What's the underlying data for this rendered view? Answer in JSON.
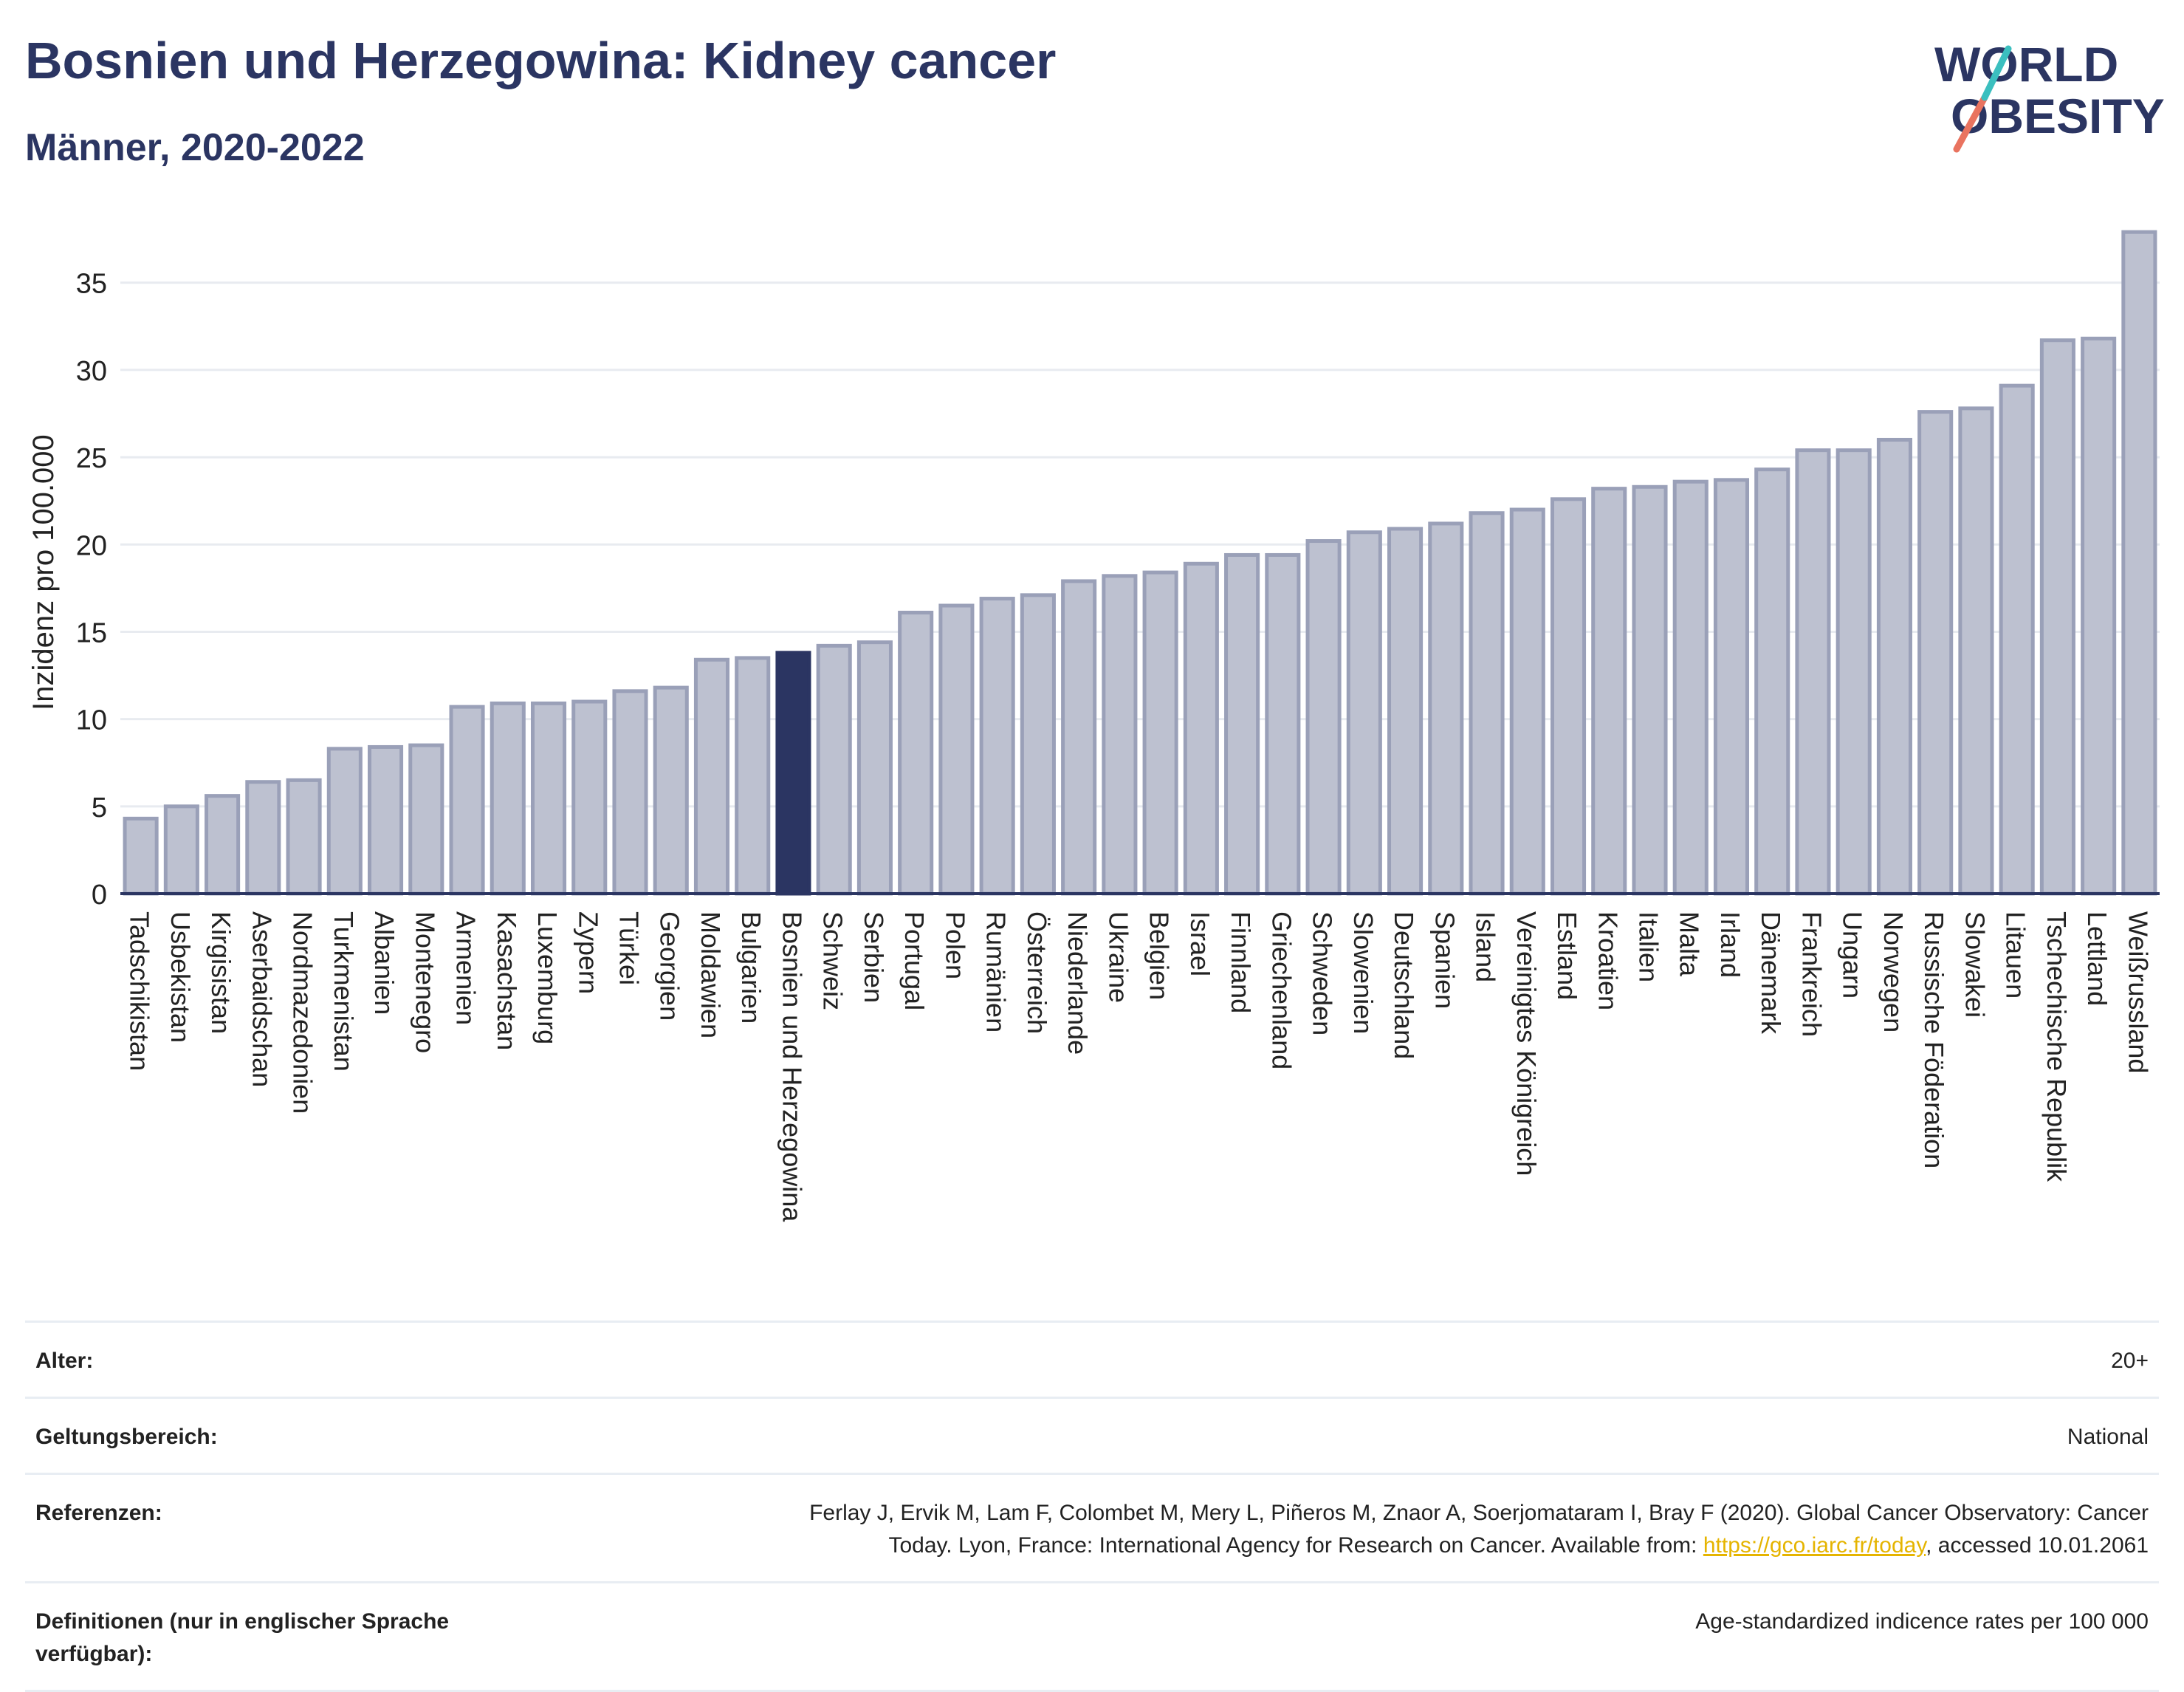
{
  "header": {
    "title": "Bosnien und Herzegowina: Kidney cancer",
    "subtitle": "Männer, 2020-2022"
  },
  "logo": {
    "line1": "WORLD",
    "line2": "OBESITY"
  },
  "colors": {
    "bar": "#bdc1d0",
    "bar_stroke": "#9aa0b8",
    "highlight": "#2b3562",
    "axis_text": "#222222",
    "grid": "#e8ebf0",
    "logo_slash_teal": "#3bbfbf",
    "logo_slash_coral": "#e9735f",
    "link": "#e5b400"
  },
  "chart_data": {
    "type": "bar",
    "ylabel": "Inzidenz pro 100.000",
    "ylim": [
      0,
      38.5
    ],
    "yticks": [
      0,
      5,
      10,
      15,
      20,
      25,
      30,
      35
    ],
    "grid": true,
    "highlight": "Bosnien und Herzegowina",
    "categories": [
      "Tadschikistan",
      "Usbekistan",
      "Kirgisistan",
      "Aserbaidschan",
      "Nordmazedonien",
      "Turkmenistan",
      "Albanien",
      "Montenegro",
      "Armenien",
      "Kasachstan",
      "Luxemburg",
      "Zypern",
      "Türkei",
      "Georgien",
      "Moldawien",
      "Bulgarien",
      "Bosnien und Herzegowina",
      "Schweiz",
      "Serbien",
      "Portugal",
      "Polen",
      "Rumänien",
      "Österreich",
      "Niederlande",
      "Ukraine",
      "Belgien",
      "Israel",
      "Finnland",
      "Griechenland",
      "Schweden",
      "Slowenien",
      "Deutschland",
      "Spanien",
      "Island",
      "Vereinigtes Königreich",
      "Estland",
      "Kroatien",
      "Italien",
      "Malta",
      "Irland",
      "Dänemark",
      "Frankreich",
      "Ungarn",
      "Norwegen",
      "Russische Föderation",
      "Slowakei",
      "Litauen",
      "Tschechische Republik",
      "Lettland",
      "Weißrussland"
    ],
    "values": [
      4.3,
      5.0,
      5.6,
      6.4,
      6.5,
      8.3,
      8.4,
      8.5,
      10.7,
      10.9,
      10.9,
      11.0,
      11.6,
      11.8,
      13.4,
      13.5,
      13.8,
      14.2,
      14.4,
      16.1,
      16.5,
      16.9,
      17.1,
      17.9,
      18.2,
      18.4,
      18.9,
      19.4,
      19.4,
      20.2,
      20.7,
      20.9,
      21.2,
      21.8,
      22.0,
      22.6,
      23.2,
      23.3,
      23.6,
      23.7,
      24.3,
      25.4,
      25.4,
      26.0,
      27.6,
      27.8,
      29.1,
      31.7,
      31.8,
      37.9
    ]
  },
  "meta": {
    "rows": [
      {
        "label": "Alter:",
        "value": "20+"
      },
      {
        "label": "Geltungsbereich:",
        "value": "National"
      },
      {
        "label": "Referenzen:",
        "value_line1": "Ferlay J, Ervik M, Lam F, Colombet M, Mery L, Piñeros M, Znaor A, Soerjomataram I, Bray F (2020). Global Cancer Observatory: Cancer",
        "value_line2_pre": "Today. Lyon, France: International Agency for Research on Cancer. Available from: ",
        "link": "https://gco.iarc.fr/today",
        "value_line2_post": ", accessed 10.01.2061"
      },
      {
        "label_line1": "Definitionen (nur in englischer Sprache",
        "label_line2": "verfügbar):",
        "value": "Age-standardized indicence rates per 100 000"
      }
    ]
  }
}
